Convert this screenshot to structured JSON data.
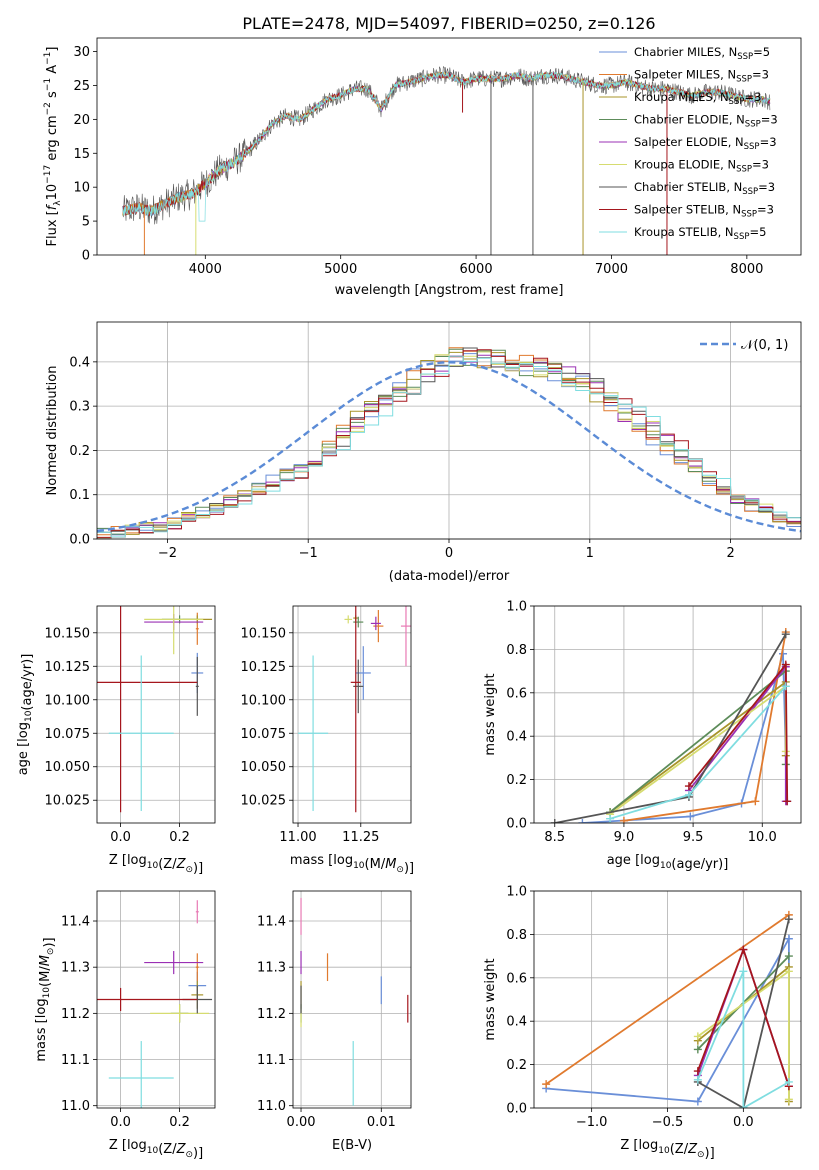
{
  "title": "PLATE=2478, MJD=54097, FIBERID=0250, z=0.126",
  "colors": {
    "chabrier_miles": "#6a8fd8",
    "salpeter_miles": "#e07a2e",
    "kroupa_miles": "#a8942a",
    "chabrier_elodie": "#5d8c5a",
    "salpeter_elodie": "#9b30b4",
    "kroupa_elodie": "#d6dc70",
    "chabrier_stelib": "#555555",
    "salpeter_stelib": "#a5161d",
    "kroupa_stelib": "#7fdde0",
    "normal": "#5b8bd6",
    "grid": "#b0b0b0",
    "pink_extra": "#e87ab4"
  },
  "chart_data": [
    {
      "id": "spectrum",
      "type": "line",
      "xlabel": "wavelength [Angstrom, rest frame]",
      "ylabel_parts": [
        "Flux [",
        "f",
        "λ",
        "10",
        "−17",
        " erg cm",
        "−2",
        " s",
        "−1",
        " A",
        "−1",
        "]"
      ],
      "xlim": [
        3200,
        8400
      ],
      "ylim": [
        0,
        32
      ],
      "xticks": [
        4000,
        5000,
        6000,
        7000,
        8000
      ],
      "yticks": [
        0,
        5,
        10,
        15,
        20,
        25,
        30
      ],
      "grid": false,
      "legend_position": "upper-right",
      "legend": [
        {
          "label": "Chabrier MILES, N",
          "sub": "SSP",
          "suffix": "=5",
          "color_key": "chabrier_miles"
        },
        {
          "label": "Salpeter MILES, N",
          "sub": "SSP",
          "suffix": "=3",
          "color_key": "salpeter_miles"
        },
        {
          "label": "Kroupa MILES, N",
          "sub": "SSP",
          "suffix": "=3",
          "color_key": "kroupa_miles"
        },
        {
          "label": "Chabrier ELODIE, N",
          "sub": "SSP",
          "suffix": "=3",
          "color_key": "chabrier_elodie"
        },
        {
          "label": "Salpeter ELODIE, N",
          "sub": "SSP",
          "suffix": "=3",
          "color_key": "salpeter_elodie"
        },
        {
          "label": "Kroupa ELODIE, N",
          "sub": "SSP",
          "suffix": "=3",
          "color_key": "kroupa_elodie"
        },
        {
          "label": "Chabrier STELIB, N",
          "sub": "SSP",
          "suffix": "=3",
          "color_key": "chabrier_stelib"
        },
        {
          "label": "Salpeter STELIB, N",
          "sub": "SSP",
          "suffix": "=3",
          "color_key": "salpeter_stelib"
        },
        {
          "label": "Kroupa STELIB, N",
          "sub": "SSP",
          "suffix": "=5",
          "color_key": "kroupa_stelib"
        }
      ],
      "continuum": {
        "x": [
          3400,
          3500,
          3600,
          3700,
          3800,
          3900,
          4000,
          4100,
          4200,
          4300,
          4400,
          4500,
          4600,
          4700,
          4800,
          4900,
          5000,
          5100,
          5200,
          5300,
          5400,
          5500,
          5600,
          5700,
          5800,
          5900,
          6000,
          6100,
          6200,
          6300,
          6400,
          6500,
          6600,
          6700,
          6800,
          6900,
          7000,
          7100,
          7200,
          7300,
          7400,
          7500,
          7600,
          7700,
          7800,
          7900,
          8000,
          8100,
          8200
        ],
        "y": [
          6.5,
          7.0,
          6.5,
          7.5,
          8.5,
          9.0,
          10.5,
          12.5,
          13.5,
          15.0,
          17.0,
          19.5,
          20.5,
          20.0,
          21.5,
          23.0,
          23.5,
          24.5,
          24.5,
          21.5,
          25.0,
          25.5,
          26.0,
          26.5,
          26.5,
          25.5,
          26.0,
          26.0,
          26.0,
          26.5,
          26.0,
          26.5,
          26.5,
          26.0,
          25.5,
          25.0,
          25.0,
          25.5,
          25.0,
          24.5,
          24.5,
          24.0,
          23.5,
          24.0,
          24.0,
          23.5,
          23.0,
          23.0,
          22.5
        ]
      },
      "spikes": [
        {
          "x": 3930,
          "y_low": 0,
          "color_key": "kroupa_elodie"
        },
        {
          "x": 3550,
          "y_low": 0,
          "color_key": "salpeter_miles"
        },
        {
          "x": 5900,
          "y_low": 21,
          "color_key": "salpeter_stelib"
        },
        {
          "x": 6110,
          "y_low": 0,
          "color_key": "chabrier_stelib"
        },
        {
          "x": 6420,
          "y_low": 0,
          "color_key": "chabrier_stelib"
        },
        {
          "x": 6790,
          "y_low": 0,
          "color_key": "kroupa_miles"
        },
        {
          "x": 7410,
          "y_low": 0,
          "color_key": "salpeter_stelib"
        }
      ]
    },
    {
      "id": "residuals",
      "type": "histogram",
      "xlabel": "(data-model)/error",
      "ylabel": "Normed distribution",
      "xlim": [
        -2.5,
        2.5
      ],
      "ylim": [
        0,
        0.49
      ],
      "xticks": [
        -2,
        -1,
        0,
        1,
        2
      ],
      "yticks": [
        0.0,
        0.1,
        0.2,
        0.3,
        0.4
      ],
      "grid": true,
      "legend_position": "upper-right",
      "legend_label": "𝒩(0, 1)",
      "bin_width": 0.1,
      "base_shape": {
        "x": [
          -2.5,
          -2.0,
          -1.5,
          -1.0,
          -0.5,
          0.0,
          0.5,
          1.0,
          1.5,
          2.0,
          2.5
        ],
        "y": [
          0.01,
          0.03,
          0.09,
          0.16,
          0.3,
          0.41,
          0.4,
          0.35,
          0.23,
          0.1,
          0.03
        ]
      },
      "normal_curve": {
        "mean": 0,
        "sigma": 1
      }
    },
    {
      "id": "age-vs-Z",
      "type": "scatter-errorbars",
      "xlabel": "Z [log10(Z/Z⊙)]",
      "ylabel": "age  [log10(age/yr)]",
      "xlim": [
        -0.08,
        0.32
      ],
      "ylim": [
        10.008,
        10.17
      ],
      "xticks": [
        0.0,
        0.2
      ],
      "yticks": [
        10.025,
        10.05,
        10.075,
        10.1,
        10.125,
        10.15
      ],
      "grid": true,
      "points": [
        {
          "x": 0.26,
          "y": 10.12,
          "xerr": 0.02,
          "yerr": 0.015,
          "color_key": "chabrier_miles"
        },
        {
          "x": 0.26,
          "y": 10.153,
          "xerr": 0.005,
          "yerr": 0.012,
          "color_key": "salpeter_miles"
        },
        {
          "x": 0.26,
          "y": 10.16,
          "xerr": 0.05,
          "yerr": 0.003,
          "color_key": "kroupa_miles"
        },
        {
          "x": 0.2,
          "y": 10.16,
          "xerr": 0.06,
          "yerr": 0.003,
          "color_key": "chabrier_elodie"
        },
        {
          "x": 0.18,
          "y": 10.158,
          "xerr": 0.1,
          "yerr": 0.006,
          "color_key": "salpeter_elodie"
        },
        {
          "x": 0.18,
          "y": 10.16,
          "xerr": 0.1,
          "yerr": 0.026,
          "color_key": "kroupa_elodie"
        },
        {
          "x": 0.26,
          "y": 10.11,
          "xerr": 0.005,
          "yerr": 0.022,
          "color_key": "chabrier_stelib"
        },
        {
          "x": 0.0,
          "y": 10.113,
          "xerr": 0.26,
          "yerr": 0.097,
          "color_key": "salpeter_stelib"
        },
        {
          "x": 0.07,
          "y": 10.075,
          "xerr": 0.11,
          "yerr": 0.058,
          "color_key": "kroupa_stelib"
        }
      ]
    },
    {
      "id": "age-vs-mass",
      "type": "scatter-errorbars",
      "xlabel": "mass [log10(M/M⊙)]",
      "ylabel": "",
      "xlim": [
        10.98,
        11.45
      ],
      "ylim": [
        10.008,
        10.17
      ],
      "xticks": [
        11.0,
        11.25
      ],
      "yticks": [
        10.025,
        10.05,
        10.075,
        10.1,
        10.125,
        10.15
      ],
      "grid": true,
      "points": [
        {
          "x": 11.26,
          "y": 10.12,
          "xerr": 0.03,
          "yerr": 0.02,
          "color_key": "chabrier_miles"
        },
        {
          "x": 11.32,
          "y": 10.155,
          "xerr": 0.02,
          "yerr": 0.012,
          "color_key": "salpeter_miles"
        },
        {
          "x": 11.23,
          "y": 10.161,
          "xerr": 0.01,
          "yerr": 0.002,
          "color_key": "kroupa_miles"
        },
        {
          "x": 11.24,
          "y": 10.158,
          "xerr": 0.02,
          "yerr": 0.004,
          "color_key": "chabrier_elodie"
        },
        {
          "x": 11.31,
          "y": 10.157,
          "xerr": 0.02,
          "yerr": 0.005,
          "color_key": "salpeter_elodie"
        },
        {
          "x": 11.2,
          "y": 10.16,
          "xerr": 0.015,
          "yerr": 0.003,
          "color_key": "kroupa_elodie"
        },
        {
          "x": 11.24,
          "y": 10.11,
          "xerr": 0.02,
          "yerr": 0.02,
          "color_key": "chabrier_stelib"
        },
        {
          "x": 11.23,
          "y": 10.113,
          "xerr": 0.02,
          "yerr": 0.097,
          "color_key": "salpeter_stelib"
        },
        {
          "x": 11.06,
          "y": 10.075,
          "xerr": 0.06,
          "yerr": 0.058,
          "color_key": "kroupa_stelib"
        },
        {
          "x": 11.43,
          "y": 10.155,
          "xerr": 0.02,
          "yerr": 0.03,
          "color_key": "pink_extra"
        }
      ]
    },
    {
      "id": "massweight-vs-age",
      "type": "line-markers",
      "xlabel": "age  [log10(age/yr)]",
      "ylabel": "mass weight",
      "xlim": [
        8.35,
        10.28
      ],
      "ylim": [
        0,
        1
      ],
      "xticks": [
        8.5,
        9.0,
        9.5,
        10.0
      ],
      "yticks": [
        0.0,
        0.2,
        0.4,
        0.6,
        0.8,
        1.0
      ],
      "grid": true,
      "series": [
        {
          "color_key": "chabrier_miles",
          "x": [
            8.7,
            9.48,
            9.85,
            10.15,
            10.18
          ],
          "y": [
            0.0,
            0.03,
            0.09,
            0.78,
            0.1
          ]
        },
        {
          "color_key": "salpeter_miles",
          "x": [
            9.0,
            9.95,
            10.17
          ],
          "y": [
            0.01,
            0.1,
            0.88
          ]
        },
        {
          "color_key": "kroupa_miles",
          "x": [
            8.9,
            10.17,
            10.17
          ],
          "y": [
            0.05,
            0.65,
            0.31
          ]
        },
        {
          "color_key": "chabrier_elodie",
          "x": [
            8.9,
            10.17,
            10.17
          ],
          "y": [
            0.05,
            0.7,
            0.27
          ]
        },
        {
          "color_key": "salpeter_elodie",
          "x": [
            9.47,
            10.17,
            10.17
          ],
          "y": [
            0.15,
            0.72,
            0.1
          ]
        },
        {
          "color_key": "kroupa_elodie",
          "x": [
            8.9,
            10.17,
            10.17
          ],
          "y": [
            0.04,
            0.63,
            0.33
          ]
        },
        {
          "color_key": "chabrier_stelib",
          "x": [
            8.5,
            9.47,
            10.17
          ],
          "y": [
            0.0,
            0.12,
            0.87
          ]
        },
        {
          "color_key": "salpeter_stelib",
          "x": [
            9.47,
            10.17,
            10.18
          ],
          "y": [
            0.17,
            0.73,
            0.1
          ]
        },
        {
          "color_key": "kroupa_stelib",
          "x": [
            8.9,
            9.47,
            10.17
          ],
          "y": [
            0.02,
            0.13,
            0.63
          ]
        }
      ]
    },
    {
      "id": "mass-vs-Z",
      "type": "scatter-errorbars",
      "xlabel": "Z [log10(Z/Z⊙)]",
      "ylabel": "mass [log10(M/M⊙)]",
      "xlim": [
        -0.08,
        0.32
      ],
      "ylim": [
        10.995,
        11.465
      ],
      "xticks": [
        0.0,
        0.2
      ],
      "yticks": [
        11.0,
        11.1,
        11.2,
        11.3,
        11.4
      ],
      "grid": true,
      "points": [
        {
          "x": 0.26,
          "y": 11.26,
          "xerr": 0.03,
          "yerr": 0.03,
          "color_key": "chabrier_miles"
        },
        {
          "x": 0.26,
          "y": 11.3,
          "xerr": 0.005,
          "yerr": 0.03,
          "color_key": "salpeter_miles"
        },
        {
          "x": 0.26,
          "y": 11.24,
          "xerr": 0.02,
          "yerr": 0.03,
          "color_key": "kroupa_miles"
        },
        {
          "x": 0.2,
          "y": 11.2,
          "xerr": 0.03,
          "yerr": 0.02,
          "color_key": "chabrier_elodie"
        },
        {
          "x": 0.18,
          "y": 11.31,
          "xerr": 0.1,
          "yerr": 0.025,
          "color_key": "salpeter_elodie"
        },
        {
          "x": 0.2,
          "y": 11.2,
          "xerr": 0.1,
          "yerr": 0.02,
          "color_key": "kroupa_elodie"
        },
        {
          "x": 0.26,
          "y": 11.23,
          "xerr": 0.05,
          "yerr": 0.03,
          "color_key": "chabrier_stelib"
        },
        {
          "x": 0.0,
          "y": 11.23,
          "xerr": 0.26,
          "yerr": 0.025,
          "color_key": "salpeter_stelib"
        },
        {
          "x": 0.07,
          "y": 11.06,
          "xerr": 0.11,
          "yerr": 0.08,
          "color_key": "kroupa_stelib"
        },
        {
          "x": 0.26,
          "y": 11.42,
          "xerr": 0.005,
          "yerr": 0.025,
          "color_key": "pink_extra"
        }
      ]
    },
    {
      "id": "mass-vs-ebv",
      "type": "scatter-errorbars",
      "xlabel": "E(B-V)",
      "ylabel": "",
      "xlim": [
        -0.001,
        0.0137
      ],
      "ylim": [
        10.995,
        11.465
      ],
      "xticks": [
        0.0,
        0.01
      ],
      "xtick_labels": [
        "0.00",
        "0.01"
      ],
      "yticks": [
        11.0,
        11.1,
        11.2,
        11.3,
        11.4
      ],
      "grid": true,
      "points": [
        {
          "x": 0.01,
          "y": 11.25,
          "xerr": 0.0,
          "yerr": 0.03,
          "color_key": "chabrier_miles"
        },
        {
          "x": 0.0033,
          "y": 11.3,
          "xerr": 0.0,
          "yerr": 0.03,
          "color_key": "salpeter_miles"
        },
        {
          "x": 0.0,
          "y": 11.24,
          "xerr": 0.0,
          "yerr": 0.03,
          "color_key": "kroupa_miles"
        },
        {
          "x": 0.0,
          "y": 11.2,
          "xerr": 0.0,
          "yerr": 0.02,
          "color_key": "chabrier_elodie"
        },
        {
          "x": 0.0,
          "y": 11.31,
          "xerr": 0.0,
          "yerr": 0.025,
          "color_key": "salpeter_elodie"
        },
        {
          "x": 0.0,
          "y": 11.19,
          "xerr": 0.0,
          "yerr": 0.02,
          "color_key": "kroupa_elodie"
        },
        {
          "x": 0.0,
          "y": 11.23,
          "xerr": 0.0,
          "yerr": 0.03,
          "color_key": "chabrier_stelib"
        },
        {
          "x": 0.0133,
          "y": 11.21,
          "xerr": 0.0,
          "yerr": 0.03,
          "color_key": "salpeter_stelib"
        },
        {
          "x": 0.0065,
          "y": 11.07,
          "xerr": 0.0,
          "yerr": 0.07,
          "color_key": "kroupa_stelib"
        },
        {
          "x": 0.0,
          "y": 11.41,
          "xerr": 0.0,
          "yerr": 0.04,
          "color_key": "pink_extra"
        }
      ]
    },
    {
      "id": "massweight-vs-Z",
      "type": "line-markers",
      "xlabel": "Z [log10(Z/Z⊙)]",
      "ylabel": "mass weight",
      "xlim": [
        -1.38,
        0.38
      ],
      "ylim": [
        0,
        1
      ],
      "xticks": [
        -1.0,
        -0.5,
        0.0
      ],
      "xtick_labels": [
        "−1.0",
        "−0.5",
        "0.0"
      ],
      "yticks": [
        0.0,
        0.2,
        0.4,
        0.6,
        0.8,
        1.0
      ],
      "grid": true,
      "series": [
        {
          "color_key": "chabrier_miles",
          "x": [
            -1.3,
            -0.3,
            0.3,
            0.3
          ],
          "y": [
            0.09,
            0.03,
            0.78,
            0.1
          ]
        },
        {
          "color_key": "salpeter_miles",
          "x": [
            -1.3,
            0.3
          ],
          "y": [
            0.11,
            0.89
          ]
        },
        {
          "color_key": "kroupa_miles",
          "x": [
            -0.3,
            0.3,
            0.3
          ],
          "y": [
            0.31,
            0.65,
            0.03
          ]
        },
        {
          "color_key": "chabrier_elodie",
          "x": [
            -0.3,
            0.3
          ],
          "y": [
            0.27,
            0.7
          ]
        },
        {
          "color_key": "salpeter_elodie",
          "x": [
            -0.3,
            0.0,
            0.3
          ],
          "y": [
            0.15,
            0.73,
            0.1
          ]
        },
        {
          "color_key": "kroupa_elodie",
          "x": [
            -0.3,
            0.3,
            0.3
          ],
          "y": [
            0.33,
            0.63,
            0.04
          ]
        },
        {
          "color_key": "chabrier_stelib",
          "x": [
            -0.3,
            0.0,
            0.3
          ],
          "y": [
            0.12,
            0.0,
            0.87
          ]
        },
        {
          "color_key": "salpeter_stelib",
          "x": [
            -0.3,
            0.0,
            0.3
          ],
          "y": [
            0.17,
            0.73,
            0.1
          ]
        },
        {
          "color_key": "kroupa_stelib",
          "x": [
            -0.3,
            0.0,
            0.0,
            0.3
          ],
          "y": [
            0.13,
            0.63,
            0.0,
            0.12
          ]
        }
      ]
    }
  ]
}
